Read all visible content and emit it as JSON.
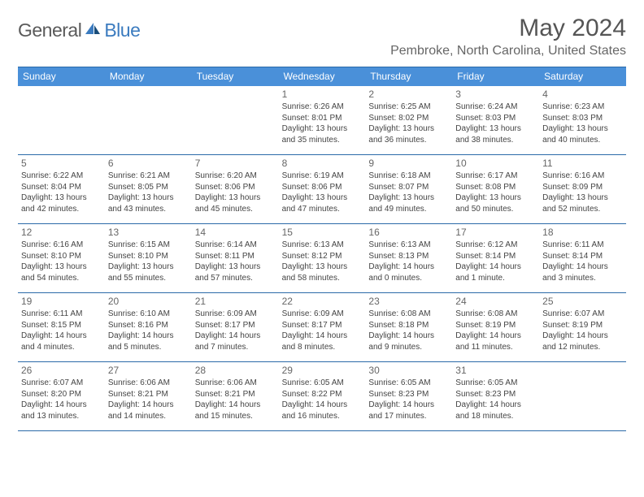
{
  "logo": {
    "part1": "General",
    "part2": "Blue"
  },
  "title": "May 2024",
  "location": "Pembroke, North Carolina, United States",
  "colors": {
    "header_bg": "#4a90d9",
    "border": "#2b6aa8",
    "logo_blue": "#3b7bbf",
    "text": "#444444"
  },
  "day_headers": [
    "Sunday",
    "Monday",
    "Tuesday",
    "Wednesday",
    "Thursday",
    "Friday",
    "Saturday"
  ],
  "weeks": [
    [
      null,
      null,
      null,
      {
        "n": "1",
        "sr": "6:26 AM",
        "ss": "8:01 PM",
        "dl": "13 hours and 35 minutes."
      },
      {
        "n": "2",
        "sr": "6:25 AM",
        "ss": "8:02 PM",
        "dl": "13 hours and 36 minutes."
      },
      {
        "n": "3",
        "sr": "6:24 AM",
        "ss": "8:03 PM",
        "dl": "13 hours and 38 minutes."
      },
      {
        "n": "4",
        "sr": "6:23 AM",
        "ss": "8:03 PM",
        "dl": "13 hours and 40 minutes."
      }
    ],
    [
      {
        "n": "5",
        "sr": "6:22 AM",
        "ss": "8:04 PM",
        "dl": "13 hours and 42 minutes."
      },
      {
        "n": "6",
        "sr": "6:21 AM",
        "ss": "8:05 PM",
        "dl": "13 hours and 43 minutes."
      },
      {
        "n": "7",
        "sr": "6:20 AM",
        "ss": "8:06 PM",
        "dl": "13 hours and 45 minutes."
      },
      {
        "n": "8",
        "sr": "6:19 AM",
        "ss": "8:06 PM",
        "dl": "13 hours and 47 minutes."
      },
      {
        "n": "9",
        "sr": "6:18 AM",
        "ss": "8:07 PM",
        "dl": "13 hours and 49 minutes."
      },
      {
        "n": "10",
        "sr": "6:17 AM",
        "ss": "8:08 PM",
        "dl": "13 hours and 50 minutes."
      },
      {
        "n": "11",
        "sr": "6:16 AM",
        "ss": "8:09 PM",
        "dl": "13 hours and 52 minutes."
      }
    ],
    [
      {
        "n": "12",
        "sr": "6:16 AM",
        "ss": "8:10 PM",
        "dl": "13 hours and 54 minutes."
      },
      {
        "n": "13",
        "sr": "6:15 AM",
        "ss": "8:10 PM",
        "dl": "13 hours and 55 minutes."
      },
      {
        "n": "14",
        "sr": "6:14 AM",
        "ss": "8:11 PM",
        "dl": "13 hours and 57 minutes."
      },
      {
        "n": "15",
        "sr": "6:13 AM",
        "ss": "8:12 PM",
        "dl": "13 hours and 58 minutes."
      },
      {
        "n": "16",
        "sr": "6:13 AM",
        "ss": "8:13 PM",
        "dl": "14 hours and 0 minutes."
      },
      {
        "n": "17",
        "sr": "6:12 AM",
        "ss": "8:14 PM",
        "dl": "14 hours and 1 minute."
      },
      {
        "n": "18",
        "sr": "6:11 AM",
        "ss": "8:14 PM",
        "dl": "14 hours and 3 minutes."
      }
    ],
    [
      {
        "n": "19",
        "sr": "6:11 AM",
        "ss": "8:15 PM",
        "dl": "14 hours and 4 minutes."
      },
      {
        "n": "20",
        "sr": "6:10 AM",
        "ss": "8:16 PM",
        "dl": "14 hours and 5 minutes."
      },
      {
        "n": "21",
        "sr": "6:09 AM",
        "ss": "8:17 PM",
        "dl": "14 hours and 7 minutes."
      },
      {
        "n": "22",
        "sr": "6:09 AM",
        "ss": "8:17 PM",
        "dl": "14 hours and 8 minutes."
      },
      {
        "n": "23",
        "sr": "6:08 AM",
        "ss": "8:18 PM",
        "dl": "14 hours and 9 minutes."
      },
      {
        "n": "24",
        "sr": "6:08 AM",
        "ss": "8:19 PM",
        "dl": "14 hours and 11 minutes."
      },
      {
        "n": "25",
        "sr": "6:07 AM",
        "ss": "8:19 PM",
        "dl": "14 hours and 12 minutes."
      }
    ],
    [
      {
        "n": "26",
        "sr": "6:07 AM",
        "ss": "8:20 PM",
        "dl": "14 hours and 13 minutes."
      },
      {
        "n": "27",
        "sr": "6:06 AM",
        "ss": "8:21 PM",
        "dl": "14 hours and 14 minutes."
      },
      {
        "n": "28",
        "sr": "6:06 AM",
        "ss": "8:21 PM",
        "dl": "14 hours and 15 minutes."
      },
      {
        "n": "29",
        "sr": "6:05 AM",
        "ss": "8:22 PM",
        "dl": "14 hours and 16 minutes."
      },
      {
        "n": "30",
        "sr": "6:05 AM",
        "ss": "8:23 PM",
        "dl": "14 hours and 17 minutes."
      },
      {
        "n": "31",
        "sr": "6:05 AM",
        "ss": "8:23 PM",
        "dl": "14 hours and 18 minutes."
      },
      null
    ]
  ]
}
